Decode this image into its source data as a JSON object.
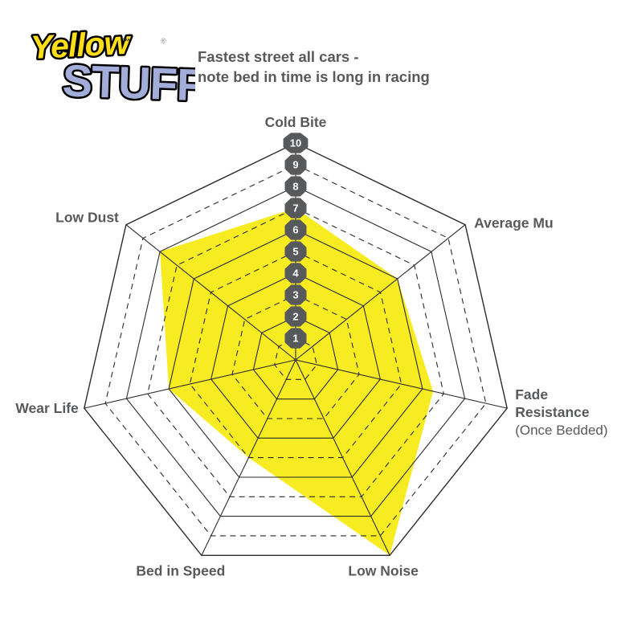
{
  "logo": {
    "word1": "Yellow",
    "trademark": "™",
    "word2": "STUFF",
    "registered": "®",
    "word1_color": "#FFDE17",
    "word2_color": "#A3ADD9",
    "outline_color": "#000000"
  },
  "title": {
    "line1": "Fastest street all cars -",
    "line2": "note bed in time is long in racing"
  },
  "chart_data": {
    "type": "radar",
    "categories": [
      "Cold Bite",
      "Average Mu",
      "Fade Resistance",
      "Low Noise",
      "Bed in Speed",
      "Wear Life",
      "Low Dust"
    ],
    "category_sublabels": [
      "",
      "",
      "(Once Bedded)",
      "",
      "",
      "",
      ""
    ],
    "values": [
      7,
      6,
      6.5,
      10,
      5,
      6,
      8
    ],
    "scale_min": 0,
    "scale_max": 10,
    "ring_step": 1,
    "ring_labels": [
      "1",
      "2",
      "3",
      "4",
      "5",
      "6",
      "7",
      "8",
      "9",
      "10"
    ],
    "grid_style": "alternating solid (even rings) and dashed (odd rings)",
    "fill_color": "#F7EB22",
    "grid_color": "#2B2B2B",
    "label_color": "#58595B",
    "badge_color": "#58595B",
    "badge_text_color": "#FFFFFF"
  }
}
